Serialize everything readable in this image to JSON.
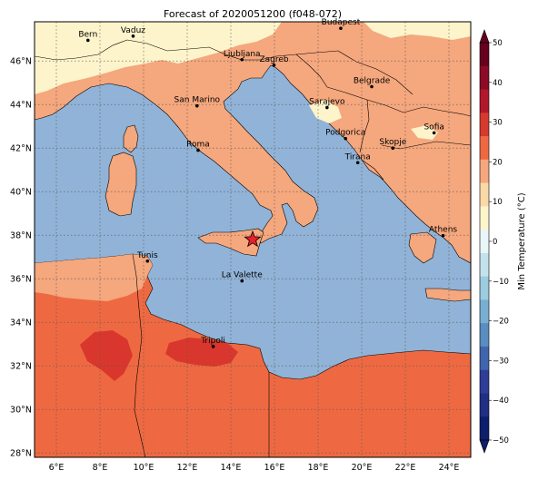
{
  "title": "Forecast of 2020051200 (f048-072)",
  "colors": {
    "sea": "#91b3d7",
    "band_10_20": "#f5a77d",
    "band_20_30": "#ee6942",
    "band_30_40": "#d9372d",
    "band_0_10": "#fdf4cb",
    "border": "#000000",
    "grid": "#555555",
    "marker": "#e8202a"
  },
  "map": {
    "lat_range": [
      27.8,
      47.8
    ],
    "lon_range": [
      5,
      25
    ],
    "lon_ticks": [
      "6°E",
      "8°E",
      "10°E",
      "12°E",
      "14°E",
      "16°E",
      "18°E",
      "20°E",
      "22°E",
      "24°E"
    ],
    "lat_ticks": [
      "28°N",
      "30°N",
      "32°N",
      "34°N",
      "36°N",
      "38°N",
      "40°N",
      "42°N",
      "44°N",
      "46°N"
    ],
    "marker": {
      "name": "star",
      "lon": 15.0,
      "lat": 37.8
    },
    "cities": [
      {
        "name": "Bern",
        "lon": 7.45,
        "lat": 46.95
      },
      {
        "name": "Vaduz",
        "lon": 9.52,
        "lat": 47.14
      },
      {
        "name": "Budapest",
        "lon": 19.04,
        "lat": 47.5
      },
      {
        "name": "Ljubljana",
        "lon": 14.51,
        "lat": 46.06
      },
      {
        "name": "Zagreb",
        "lon": 15.98,
        "lat": 45.81
      },
      {
        "name": "Belgrade",
        "lon": 20.46,
        "lat": 44.82
      },
      {
        "name": "San Marino",
        "lon": 12.45,
        "lat": 43.94
      },
      {
        "name": "Sarajevo",
        "lon": 18.41,
        "lat": 43.86
      },
      {
        "name": "Sofia",
        "lon": 23.32,
        "lat": 42.7
      },
      {
        "name": "Podgorica",
        "lon": 19.26,
        "lat": 42.44
      },
      {
        "name": "Skopje",
        "lon": 21.43,
        "lat": 42.0
      },
      {
        "name": "Roma",
        "lon": 12.5,
        "lat": 41.9
      },
      {
        "name": "Tirana",
        "lon": 19.82,
        "lat": 41.33
      },
      {
        "name": "Athens",
        "lon": 23.73,
        "lat": 37.98
      },
      {
        "name": "Tunis",
        "lon": 10.18,
        "lat": 36.81
      },
      {
        "name": "La Valette",
        "lon": 14.51,
        "lat": 35.9
      },
      {
        "name": "Tripoli",
        "lon": 13.19,
        "lat": 32.89
      }
    ]
  },
  "colorbar": {
    "label": "Min Temperature (°C)",
    "ticks": [
      "50",
      "40",
      "30",
      "20",
      "10",
      "0",
      "−10",
      "−20",
      "−30",
      "−40",
      "−50"
    ],
    "colors": [
      "#67001f",
      "#8b0a26",
      "#b2182b",
      "#d6392d",
      "#ee6942",
      "#f5a77d",
      "#fbd9a6",
      "#fdf4cb",
      "#e9f6f7",
      "#c4e2ec",
      "#9dcbe0",
      "#78aed1",
      "#5a8dc1",
      "#4165ad",
      "#2f3d98",
      "#1f2f84",
      "#0c1e6c"
    ]
  }
}
